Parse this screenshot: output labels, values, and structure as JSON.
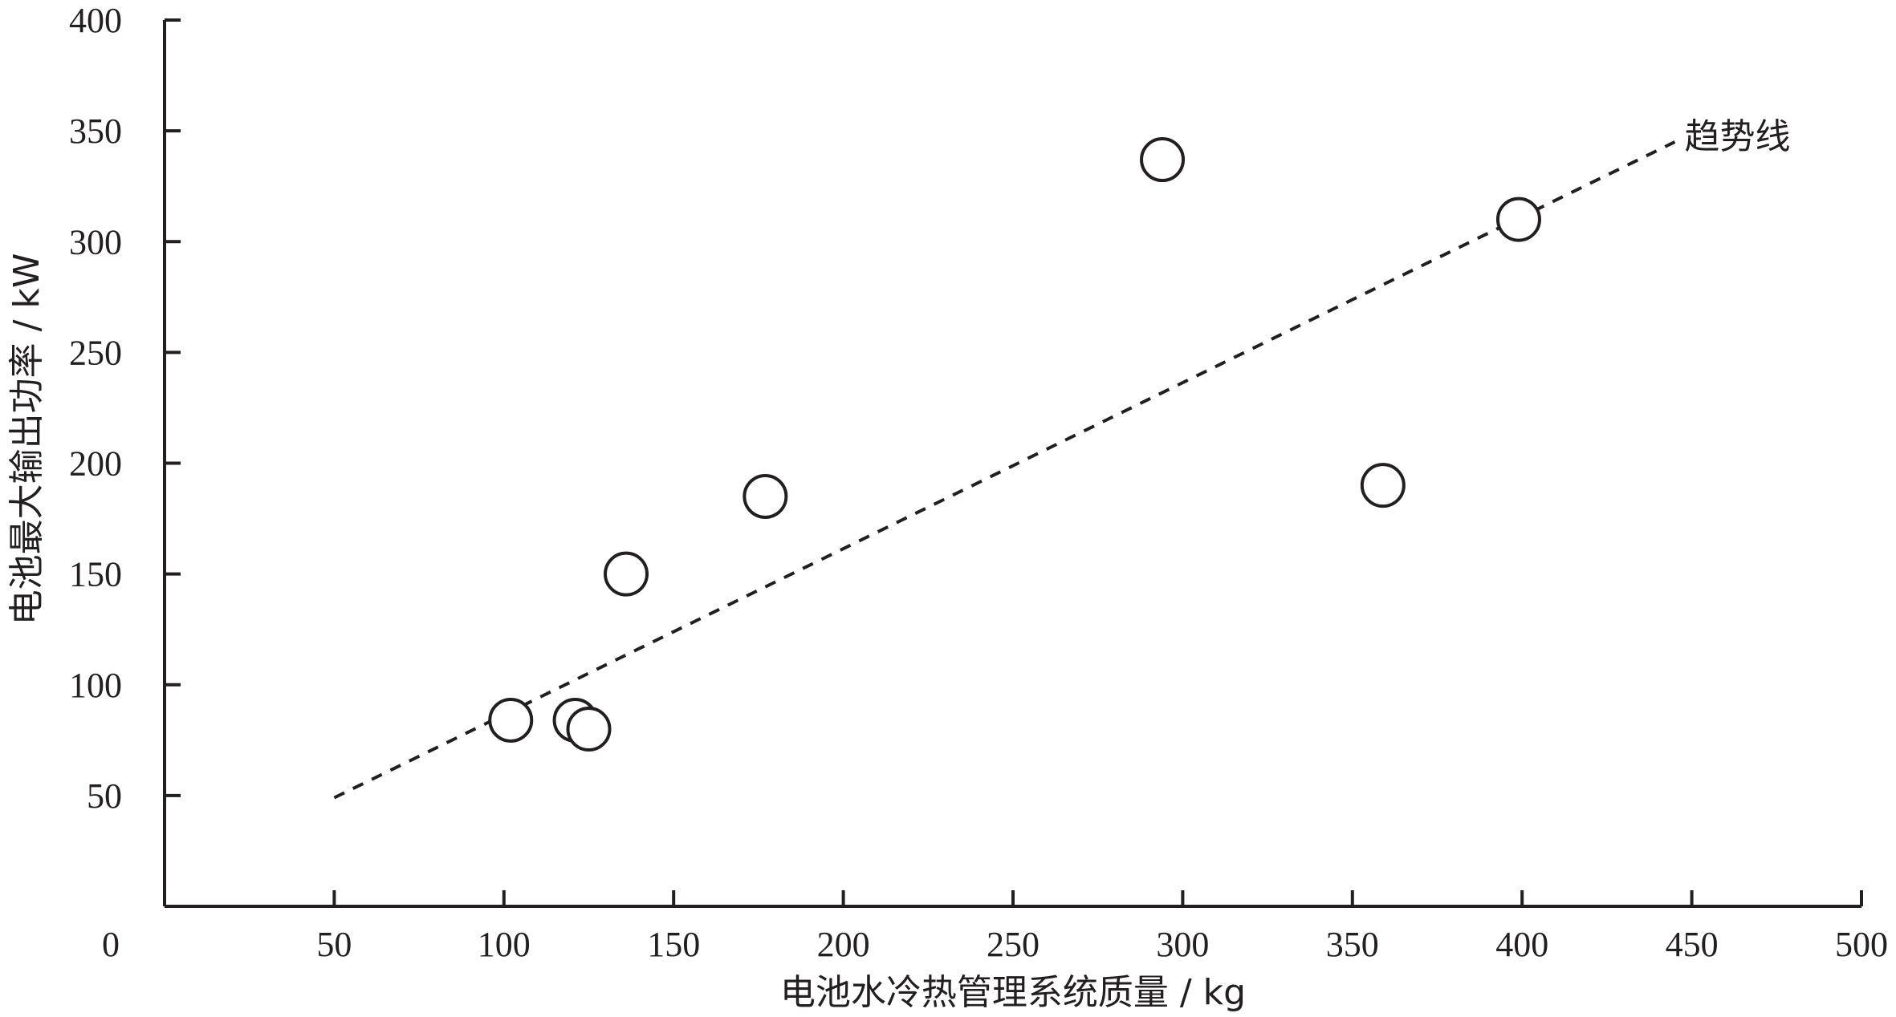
{
  "chart_data": {
    "type": "scatter",
    "title": "",
    "xlabel": "电池水冷热管理系统质量 / kg",
    "ylabel": "电池最大输出功率 / kW",
    "xlim": [
      0,
      500
    ],
    "ylim": [
      0,
      400
    ],
    "x_ticks": [
      50,
      100,
      150,
      200,
      250,
      300,
      350,
      400,
      450,
      500
    ],
    "y_ticks": [
      50,
      100,
      150,
      200,
      250,
      300,
      350,
      400
    ],
    "origin_label": "0",
    "grid": false,
    "points": [
      {
        "x": 102,
        "y": 84
      },
      {
        "x": 121,
        "y": 84
      },
      {
        "x": 125,
        "y": 80
      },
      {
        "x": 136,
        "y": 150
      },
      {
        "x": 177,
        "y": 185
      },
      {
        "x": 294,
        "y": 337
      },
      {
        "x": 359,
        "y": 190
      },
      {
        "x": 399,
        "y": 310
      }
    ],
    "trendline": {
      "label": "趋势线",
      "x": [
        50,
        445
      ],
      "y": [
        49,
        345
      ]
    },
    "colors": {
      "ink": "#231f20",
      "background": "#ffffff"
    }
  }
}
